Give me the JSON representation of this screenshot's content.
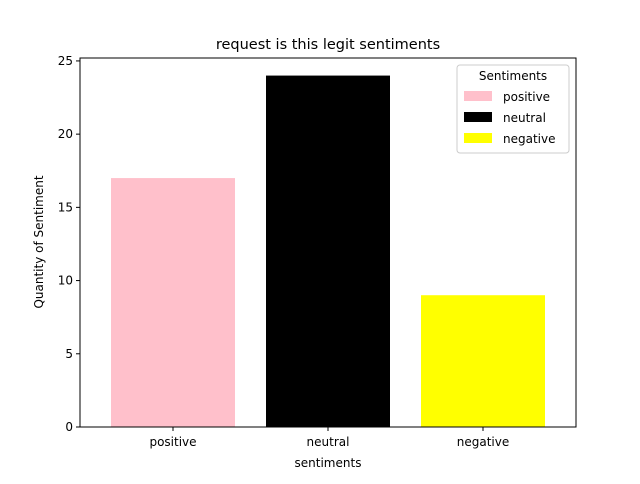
{
  "chart_data": {
    "type": "bar",
    "title": "request is this legit sentiments",
    "xlabel": "sentiments",
    "ylabel": "Quantity of Sentiment",
    "categories": [
      "positive",
      "neutral",
      "negative"
    ],
    "values": [
      17,
      24,
      9
    ],
    "colors": [
      "#ffc0cb",
      "#000000",
      "#ffff00"
    ],
    "ylim": [
      0,
      25.2
    ],
    "yticks": [
      0,
      5,
      10,
      15,
      20,
      25
    ],
    "grid": false,
    "legend": {
      "title": "Sentiments",
      "placement": "top-right",
      "entries": [
        {
          "label": "positive",
          "color": "#ffc0cb"
        },
        {
          "label": "neutral",
          "color": "#000000"
        },
        {
          "label": "negative",
          "color": "#ffff00"
        }
      ]
    }
  }
}
